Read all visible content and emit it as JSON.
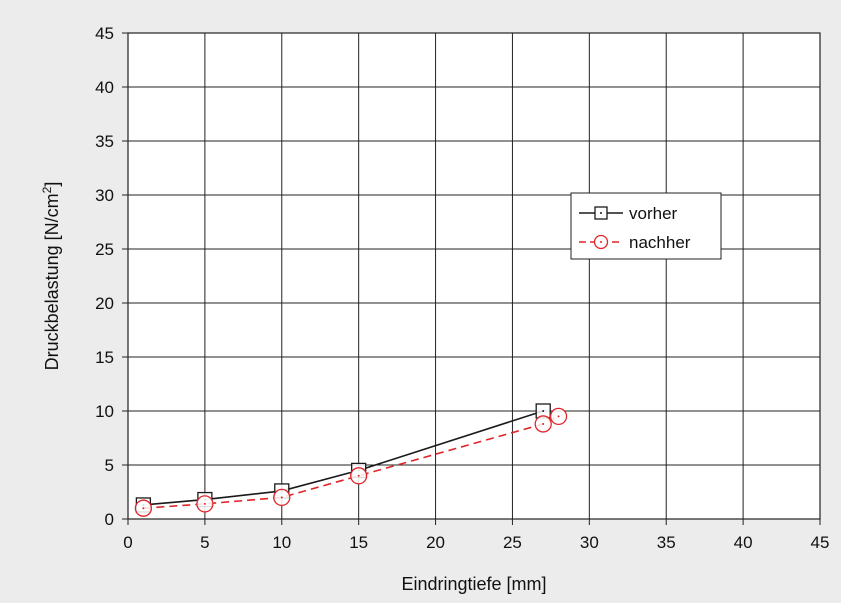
{
  "chart_data": {
    "type": "line",
    "xlabel": "Eindringtiefe [mm]",
    "ylabel_main": "Druckbelastung [N/cm",
    "ylabel_sup": "2",
    "ylabel_end": "]",
    "xlim": [
      0,
      45
    ],
    "ylim": [
      0,
      45
    ],
    "xticks": [
      0,
      5,
      10,
      15,
      20,
      25,
      30,
      35,
      40,
      45
    ],
    "yticks": [
      0,
      5,
      10,
      15,
      20,
      25,
      30,
      35,
      40,
      45
    ],
    "grid": true,
    "legend_position": "center-right",
    "series": [
      {
        "name": "vorher",
        "color": "#1a1a1a",
        "marker": "square",
        "line_style": "solid",
        "x": [
          1,
          5,
          10,
          15,
          27
        ],
        "y": [
          1.3,
          1.8,
          2.6,
          4.5,
          10.0
        ]
      },
      {
        "name": "nachher",
        "color": "#e0262b",
        "marker": "circle",
        "line_style": "dashed",
        "x": [
          1,
          5,
          10,
          15,
          27,
          28
        ],
        "y": [
          1.0,
          1.4,
          2.0,
          4.0,
          8.8,
          9.5
        ]
      }
    ]
  }
}
